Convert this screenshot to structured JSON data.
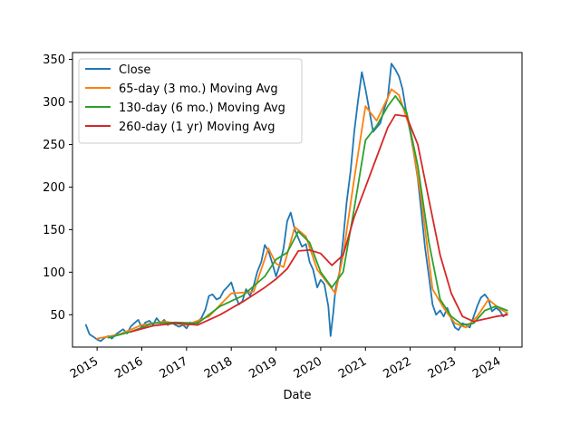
{
  "chart_data": {
    "type": "line",
    "title": "",
    "xlabel": "Date",
    "ylabel": "",
    "xlim": [
      2014.45,
      2024.5
    ],
    "ylim": [
      12,
      358
    ],
    "x_ticks": [
      2015,
      2016,
      2017,
      2018,
      2019,
      2020,
      2021,
      2022,
      2023,
      2024
    ],
    "y_ticks": [
      50,
      100,
      150,
      200,
      250,
      300,
      350
    ],
    "grid": false,
    "legend_position": "top-left",
    "series": [
      {
        "name": "Close",
        "color": "#1f77b4",
        "points": [
          [
            2014.75,
            38
          ],
          [
            2014.83,
            27
          ],
          [
            2014.92,
            24
          ],
          [
            2015.0,
            21
          ],
          [
            2015.08,
            19
          ],
          [
            2015.17,
            23
          ],
          [
            2015.25,
            25
          ],
          [
            2015.33,
            22
          ],
          [
            2015.42,
            27
          ],
          [
            2015.5,
            30
          ],
          [
            2015.58,
            33
          ],
          [
            2015.67,
            28
          ],
          [
            2015.75,
            36
          ],
          [
            2015.83,
            40
          ],
          [
            2015.92,
            44
          ],
          [
            2016.0,
            35
          ],
          [
            2016.08,
            41
          ],
          [
            2016.17,
            43
          ],
          [
            2016.25,
            38
          ],
          [
            2016.33,
            46
          ],
          [
            2016.42,
            40
          ],
          [
            2016.5,
            44
          ],
          [
            2016.58,
            38
          ],
          [
            2016.67,
            41
          ],
          [
            2016.75,
            38
          ],
          [
            2016.83,
            36
          ],
          [
            2016.92,
            38
          ],
          [
            2017.0,
            34
          ],
          [
            2017.08,
            41
          ],
          [
            2017.17,
            39
          ],
          [
            2017.25,
            42
          ],
          [
            2017.33,
            46
          ],
          [
            2017.42,
            56
          ],
          [
            2017.5,
            72
          ],
          [
            2017.58,
            74
          ],
          [
            2017.67,
            68
          ],
          [
            2017.75,
            70
          ],
          [
            2017.83,
            78
          ],
          [
            2017.92,
            83
          ],
          [
            2018.0,
            88
          ],
          [
            2018.08,
            74
          ],
          [
            2018.17,
            62
          ],
          [
            2018.25,
            66
          ],
          [
            2018.33,
            80
          ],
          [
            2018.42,
            72
          ],
          [
            2018.5,
            84
          ],
          [
            2018.58,
            100
          ],
          [
            2018.67,
            112
          ],
          [
            2018.75,
            132
          ],
          [
            2018.83,
            125
          ],
          [
            2018.92,
            110
          ],
          [
            2019.0,
            95
          ],
          [
            2019.08,
            108
          ],
          [
            2019.17,
            128
          ],
          [
            2019.25,
            160
          ],
          [
            2019.33,
            170
          ],
          [
            2019.42,
            150
          ],
          [
            2019.5,
            140
          ],
          [
            2019.58,
            130
          ],
          [
            2019.67,
            133
          ],
          [
            2019.75,
            112
          ],
          [
            2019.83,
            103
          ],
          [
            2019.92,
            82
          ],
          [
            2020.0,
            91
          ],
          [
            2020.08,
            86
          ],
          [
            2020.17,
            60
          ],
          [
            2020.22,
            25
          ],
          [
            2020.28,
            52
          ],
          [
            2020.33,
            80
          ],
          [
            2020.42,
            100
          ],
          [
            2020.5,
            138
          ],
          [
            2020.58,
            182
          ],
          [
            2020.67,
            220
          ],
          [
            2020.75,
            265
          ],
          [
            2020.83,
            300
          ],
          [
            2020.92,
            335
          ],
          [
            2021.0,
            315
          ],
          [
            2021.08,
            292
          ],
          [
            2021.17,
            265
          ],
          [
            2021.25,
            270
          ],
          [
            2021.33,
            275
          ],
          [
            2021.42,
            292
          ],
          [
            2021.5,
            305
          ],
          [
            2021.58,
            345
          ],
          [
            2021.67,
            338
          ],
          [
            2021.75,
            330
          ],
          [
            2021.83,
            315
          ],
          [
            2021.92,
            285
          ],
          [
            2022.0,
            265
          ],
          [
            2022.08,
            240
          ],
          [
            2022.17,
            210
          ],
          [
            2022.25,
            170
          ],
          [
            2022.33,
            130
          ],
          [
            2022.42,
            95
          ],
          [
            2022.5,
            62
          ],
          [
            2022.58,
            50
          ],
          [
            2022.67,
            55
          ],
          [
            2022.75,
            48
          ],
          [
            2022.83,
            58
          ],
          [
            2022.92,
            45
          ],
          [
            2023.0,
            35
          ],
          [
            2023.08,
            32
          ],
          [
            2023.17,
            40
          ],
          [
            2023.25,
            38
          ],
          [
            2023.33,
            35
          ],
          [
            2023.42,
            48
          ],
          [
            2023.5,
            60
          ],
          [
            2023.58,
            70
          ],
          [
            2023.67,
            74
          ],
          [
            2023.75,
            68
          ],
          [
            2023.83,
            54
          ],
          [
            2023.92,
            58
          ],
          [
            2024.0,
            55
          ],
          [
            2024.08,
            48
          ],
          [
            2024.17,
            52
          ]
        ]
      },
      {
        "name": "65-day (3 mo.) Moving Avg",
        "color": "#ff7f0e",
        "points": [
          [
            2015.0,
            22
          ],
          [
            2015.5,
            27
          ],
          [
            2016.0,
            38
          ],
          [
            2016.5,
            42
          ],
          [
            2017.0,
            38
          ],
          [
            2017.5,
            48
          ],
          [
            2018.0,
            75
          ],
          [
            2018.5,
            77
          ],
          [
            2018.83,
            128
          ],
          [
            2019.0,
            110
          ],
          [
            2019.17,
            106
          ],
          [
            2019.42,
            153
          ],
          [
            2019.67,
            142
          ],
          [
            2019.92,
            103
          ],
          [
            2020.17,
            86
          ],
          [
            2020.33,
            75
          ],
          [
            2020.5,
            120
          ],
          [
            2020.75,
            210
          ],
          [
            2021.0,
            295
          ],
          [
            2021.25,
            278
          ],
          [
            2021.5,
            305
          ],
          [
            2021.58,
            315
          ],
          [
            2021.75,
            308
          ],
          [
            2022.0,
            268
          ],
          [
            2022.25,
            185
          ],
          [
            2022.5,
            80
          ],
          [
            2022.75,
            58
          ],
          [
            2023.0,
            40
          ],
          [
            2023.25,
            35
          ],
          [
            2023.5,
            48
          ],
          [
            2023.75,
            68
          ],
          [
            2024.0,
            57
          ],
          [
            2024.17,
            52
          ]
        ]
      },
      {
        "name": "130-day (6 mo.) Moving Avg",
        "color": "#2ca02c",
        "points": [
          [
            2015.25,
            23
          ],
          [
            2015.75,
            30
          ],
          [
            2016.25,
            40
          ],
          [
            2016.75,
            41
          ],
          [
            2017.25,
            40
          ],
          [
            2017.75,
            60
          ],
          [
            2018.25,
            72
          ],
          [
            2018.75,
            95
          ],
          [
            2019.0,
            115
          ],
          [
            2019.25,
            123
          ],
          [
            2019.5,
            148
          ],
          [
            2019.75,
            135
          ],
          [
            2020.0,
            100
          ],
          [
            2020.25,
            82
          ],
          [
            2020.5,
            100
          ],
          [
            2020.75,
            175
          ],
          [
            2021.0,
            255
          ],
          [
            2021.25,
            272
          ],
          [
            2021.5,
            295
          ],
          [
            2021.67,
            307
          ],
          [
            2021.92,
            288
          ],
          [
            2022.17,
            225
          ],
          [
            2022.42,
            135
          ],
          [
            2022.67,
            68
          ],
          [
            2022.92,
            48
          ],
          [
            2023.17,
            38
          ],
          [
            2023.42,
            40
          ],
          [
            2023.67,
            55
          ],
          [
            2023.92,
            60
          ],
          [
            2024.17,
            55
          ]
        ]
      },
      {
        "name": "260-day (1 yr) Moving Avg",
        "color": "#d62728",
        "points": [
          [
            2015.75,
            30
          ],
          [
            2016.25,
            37
          ],
          [
            2016.75,
            40
          ],
          [
            2017.25,
            38
          ],
          [
            2017.75,
            50
          ],
          [
            2018.25,
            65
          ],
          [
            2018.75,
            82
          ],
          [
            2019.0,
            92
          ],
          [
            2019.25,
            104
          ],
          [
            2019.5,
            125
          ],
          [
            2019.75,
            126
          ],
          [
            2020.0,
            122
          ],
          [
            2020.25,
            108
          ],
          [
            2020.5,
            120
          ],
          [
            2020.75,
            165
          ],
          [
            2021.0,
            200
          ],
          [
            2021.25,
            235
          ],
          [
            2021.5,
            270
          ],
          [
            2021.67,
            285
          ],
          [
            2021.92,
            283
          ],
          [
            2022.17,
            250
          ],
          [
            2022.42,
            185
          ],
          [
            2022.67,
            120
          ],
          [
            2022.92,
            75
          ],
          [
            2023.17,
            48
          ],
          [
            2023.42,
            42
          ],
          [
            2023.67,
            45
          ],
          [
            2023.92,
            48
          ],
          [
            2024.17,
            50
          ]
        ]
      }
    ]
  }
}
